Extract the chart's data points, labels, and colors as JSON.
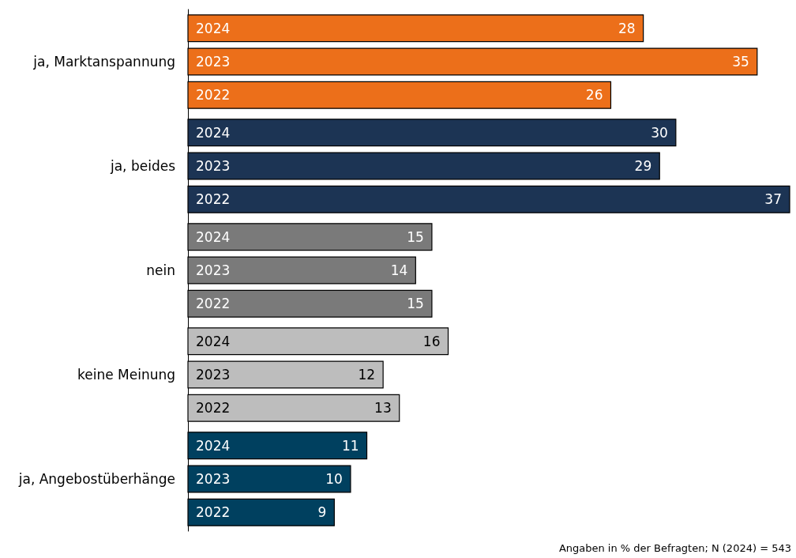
{
  "chart_data": {
    "type": "bar",
    "orientation": "horizontal",
    "categories": [
      "ja, Marktanspannung",
      "ja, beides",
      "nein",
      "keine Meinung",
      "ja, Angebostüberhänge"
    ],
    "series": [
      {
        "name": "2024",
        "values": [
          28,
          30,
          15,
          16,
          11
        ],
        "colors": [
          "#ec6f1a",
          "#1c3454",
          "#7a7a7a",
          "#bdbdbd",
          "#00405f"
        ]
      },
      {
        "name": "2023",
        "values": [
          35,
          29,
          14,
          12,
          10
        ],
        "colors": [
          "#ec6f1a",
          "#1c3454",
          "#7a7a7a",
          "#bdbdbd",
          "#00405f"
        ]
      },
      {
        "name": "2022",
        "values": [
          26,
          37,
          15,
          13,
          9
        ],
        "colors": [
          "#ec6f1a",
          "#1c3454",
          "#7a7a7a",
          "#bdbdbd",
          "#00405f"
        ]
      }
    ],
    "data_labels": true,
    "annotations": [
      "Angaben in % der Befragten; N (2024) = 543"
    ]
  }
}
